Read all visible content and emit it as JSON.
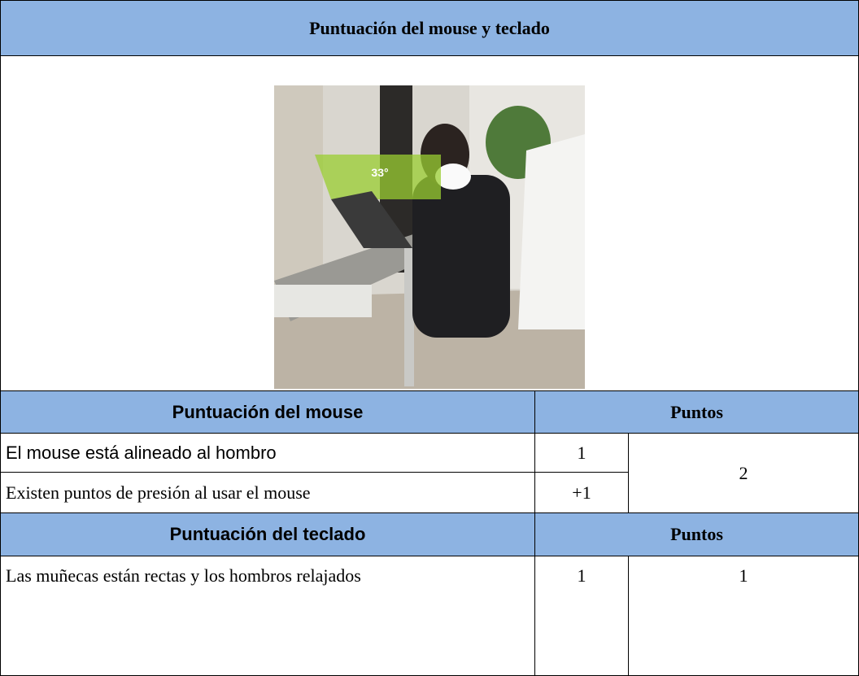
{
  "title": "Puntuación del mouse y teclado",
  "image": {
    "annotation": "33°"
  },
  "mouse": {
    "header": [
      "Puntuación del mouse",
      "Puntos"
    ],
    "rows": [
      {
        "label": "El mouse está alineado al hombro",
        "points": 1
      },
      {
        "label": "Existen puntos de presión al usar el mouse",
        "points": "+1"
      }
    ],
    "total": 2
  },
  "keyboard": {
    "header": [
      "Puntuación del teclado",
      "Puntos"
    ],
    "rows": [
      {
        "label": "Las muñecas están rectas y los hombros relajados",
        "points": 1
      }
    ],
    "total": 1
  }
}
